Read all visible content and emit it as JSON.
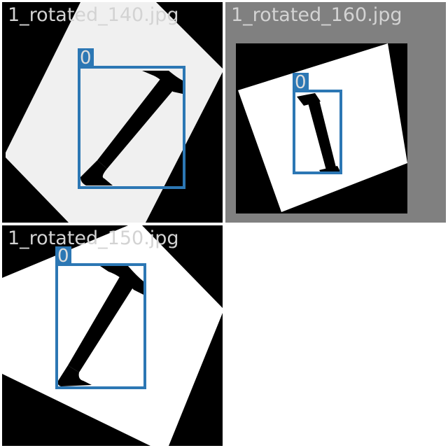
{
  "grid": {
    "background": "#ffffff",
    "tiles": [
      {
        "file_name": "1_rotated_140.jpg",
        "frame_color": "#000000",
        "page_color": "#f0f0f0",
        "box_label": "0"
      },
      {
        "file_name": "1_rotated_160.jpg",
        "frame_color": "#808080",
        "page_color": "#ffffff",
        "box_label": "0"
      },
      {
        "file_name": "1_rotated_150.jpg",
        "frame_color": "#000000",
        "page_color": "#ffffff",
        "box_label": "0"
      }
    ],
    "styles": {
      "box_color": "#2c77b4",
      "label_text_color": "#dddddd",
      "file_name_color": "#d3d3d3",
      "glyph_color": "#000000"
    }
  }
}
